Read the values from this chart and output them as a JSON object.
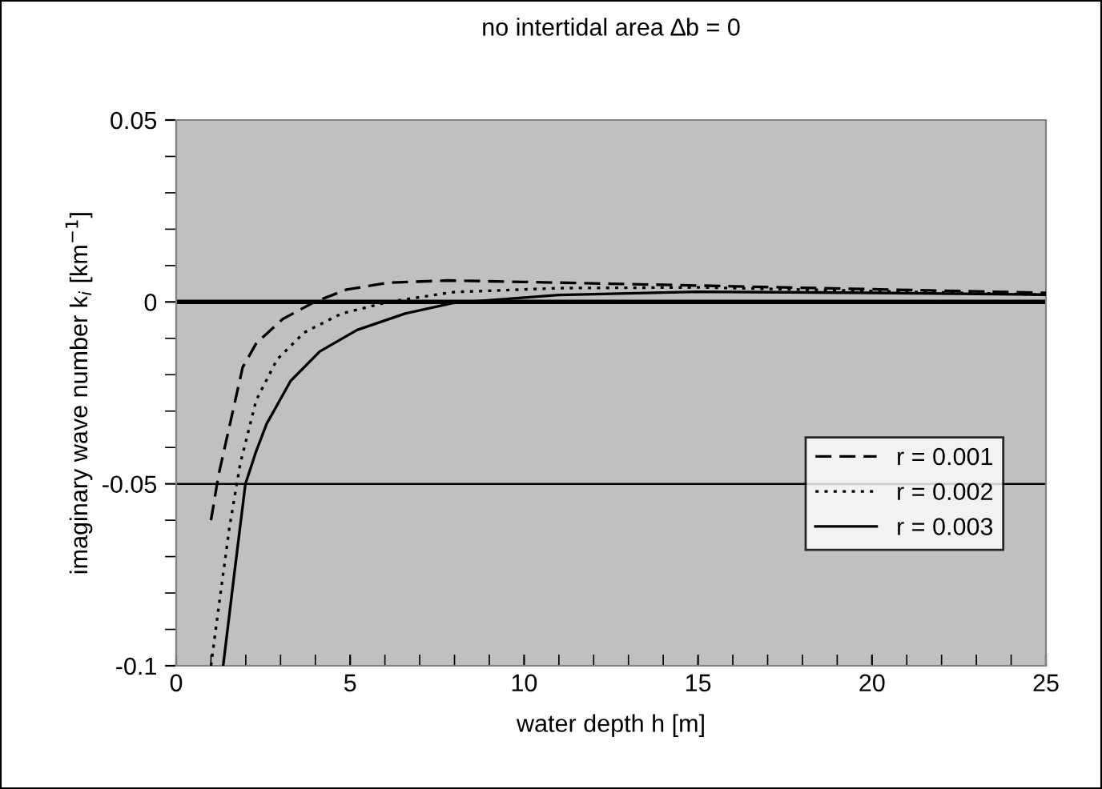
{
  "chart_data": {
    "type": "line",
    "title": "no intertidal area ∆b = 0",
    "xlabel": "water depth h [m]",
    "ylabel": "imaginary wave number k$_{i}$ [km$^{−1}$]",
    "series": [
      {
        "name": "r = 0.001",
        "color": "#000000",
        "line_style": "dashed",
        "x": [
          1.0,
          1.22,
          1.91,
          2.3,
          3.06,
          3.98,
          4.9,
          6.1,
          7.8,
          10,
          15,
          20,
          25
        ],
        "values": [
          -0.06,
          -0.0475,
          -0.018,
          -0.0114,
          -0.0047,
          0,
          0.0034,
          0.0053,
          0.0059,
          0.0055,
          0.0045,
          0.0035,
          0.0025
        ]
      },
      {
        "name": "r = 0.002",
        "color": "#000000",
        "line_style": "dotted",
        "x": [
          1.0,
          1.22,
          1.53,
          1.84,
          2.3,
          2.9,
          3.68,
          4.75,
          6.1,
          7.96,
          11,
          15,
          20,
          25
        ],
        "values": [
          -0.1,
          -0.084,
          -0.062,
          -0.0445,
          -0.027,
          -0.0158,
          -0.0084,
          -0.0032,
          0,
          0.0027,
          0.0038,
          0.004,
          0.003,
          0.002
        ]
      },
      {
        "name": "r = 0.003",
        "color": "#000000",
        "line_style": "solid",
        "x": [
          1.35,
          1.68,
          1.99,
          2.3,
          2.6,
          3.29,
          4.13,
          5.2,
          6.58,
          7.96,
          11,
          15,
          20,
          25
        ],
        "values": [
          -0.1,
          -0.074,
          -0.05,
          -0.041,
          -0.0335,
          -0.0217,
          -0.0136,
          -0.0077,
          -0.0032,
          -0.0003,
          0.0019,
          0.0028,
          0.0025,
          0.002
        ]
      }
    ],
    "xlim": [
      0,
      25
    ],
    "ylim": [
      -0.1,
      0.05
    ],
    "xticks": [
      0,
      {
        "value": 1,
        "label": null
      },
      {
        "value": 2,
        "label": null
      },
      {
        "value": 3,
        "label": null
      },
      {
        "value": 4,
        "label": null
      },
      5,
      {
        "value": 6,
        "label": null
      },
      {
        "value": 7,
        "label": null
      },
      {
        "value": 8,
        "label": null
      },
      {
        "value": 9,
        "label": null
      },
      10,
      {
        "value": 11,
        "label": null
      },
      {
        "value": 12,
        "label": null
      },
      {
        "value": 13,
        "label": null
      },
      {
        "value": 14,
        "label": null
      },
      15,
      {
        "value": 16,
        "label": null
      },
      {
        "value": 17,
        "label": null
      },
      {
        "value": 18,
        "label": null
      },
      {
        "value": 19,
        "label": null
      },
      20,
      {
        "value": 21,
        "label": null
      },
      {
        "value": 22,
        "label": null
      },
      {
        "value": 23,
        "label": null
      },
      {
        "value": 24,
        "label": null
      },
      25
    ],
    "yticks": [
      {
        "value": -0.1,
        "label": "-0.1"
      },
      {
        "value": -0.09,
        "label": null
      },
      {
        "value": -0.08,
        "label": null
      },
      {
        "value": -0.07,
        "label": null
      },
      {
        "value": -0.06,
        "label": null
      },
      {
        "value": -0.05,
        "label": "-0.05"
      },
      {
        "value": -0.04,
        "label": null
      },
      {
        "value": -0.03,
        "label": null
      },
      {
        "value": -0.02,
        "label": null
      },
      {
        "value": -0.01,
        "label": null
      },
      0,
      {
        "value": 0.01,
        "label": null
      },
      {
        "value": 0.02,
        "label": null
      },
      {
        "value": 0.03,
        "label": null
      },
      {
        "value": 0.04,
        "label": null
      },
      0.05
    ],
    "ref_lines": [
      {
        "axis": "y",
        "value": 0
      },
      {
        "axis": "y",
        "value": -0.05
      }
    ],
    "legend": "lower right"
  }
}
